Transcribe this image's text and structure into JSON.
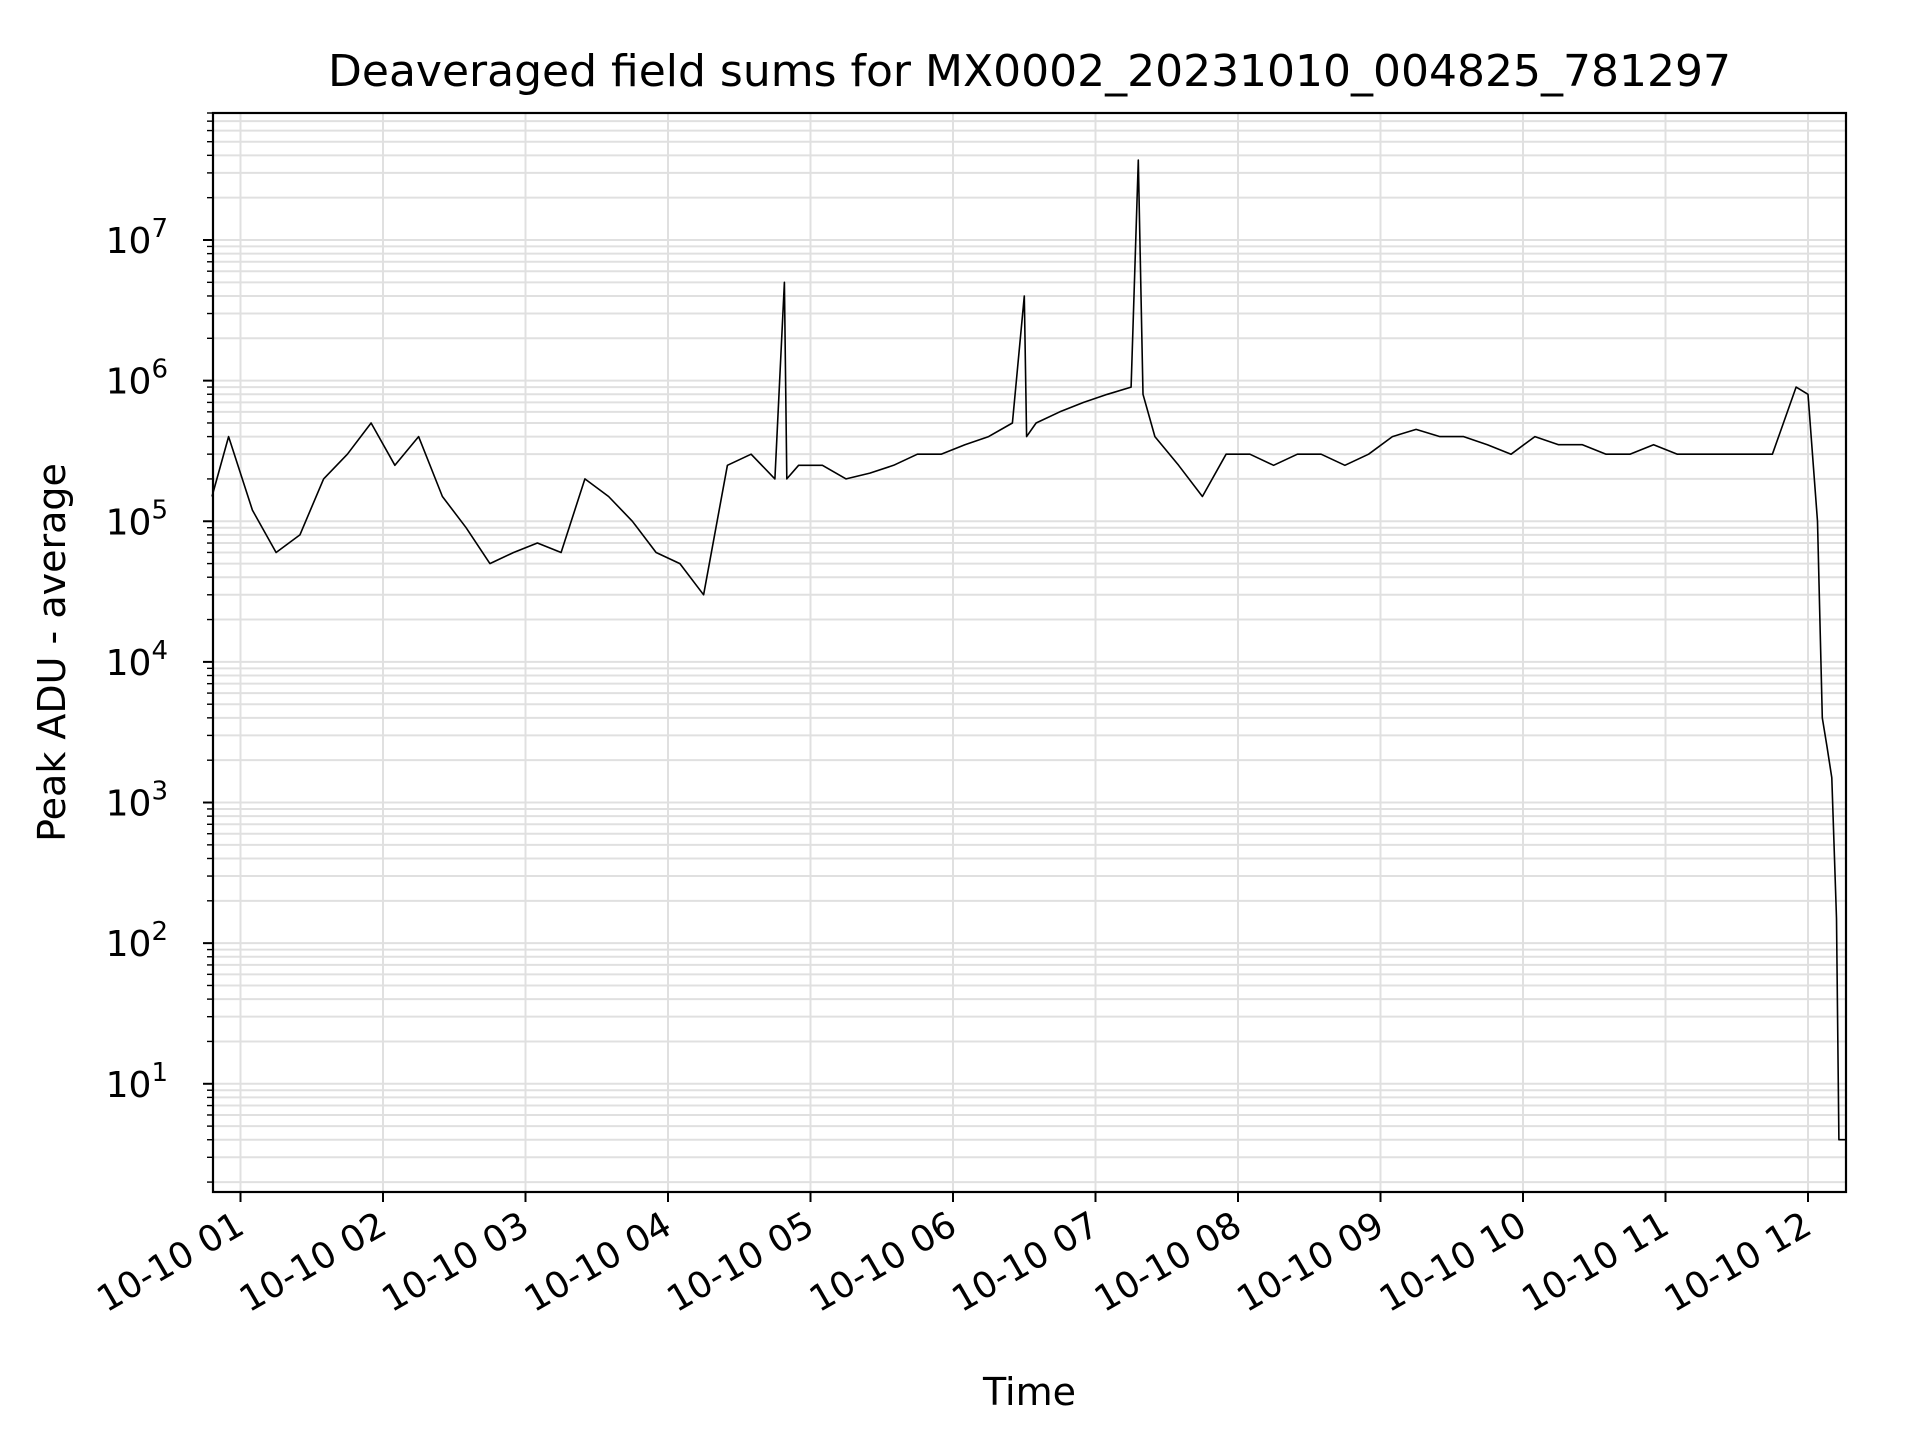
{
  "chart_data": {
    "type": "line",
    "title": "Deaveraged field sums for MX0002_20231010_004825_781297",
    "xlabel": "Time",
    "ylabel": "Peak ADU - average",
    "y_scale": "log",
    "ylim": [
      1.7,
      80000000
    ],
    "xlim": [
      "2023-10-10 00:48:25",
      "2023-10-10 12:16:00"
    ],
    "grid": true,
    "line_color": "#000000",
    "grid_color": "#e0e0e0",
    "x_ticks": [
      "10-10 01",
      "10-10 02",
      "10-10 03",
      "10-10 04",
      "10-10 05",
      "10-10 06",
      "10-10 07",
      "10-10 08",
      "10-10 09",
      "10-10 10",
      "10-10 11",
      "10-10 12"
    ],
    "x_tick_times": [
      "2023-10-10 01:00",
      "2023-10-10 02:00",
      "2023-10-10 03:00",
      "2023-10-10 04:00",
      "2023-10-10 05:00",
      "2023-10-10 06:00",
      "2023-10-10 07:00",
      "2023-10-10 08:00",
      "2023-10-10 09:00",
      "2023-10-10 10:00",
      "2023-10-10 11:00",
      "2023-10-10 12:00"
    ],
    "y_ticks": [
      {
        "base": "10",
        "exp": "1",
        "value": 10
      },
      {
        "base": "10",
        "exp": "2",
        "value": 100
      },
      {
        "base": "10",
        "exp": "3",
        "value": 1000
      },
      {
        "base": "10",
        "exp": "4",
        "value": 10000
      },
      {
        "base": "10",
        "exp": "5",
        "value": 100000
      },
      {
        "base": "10",
        "exp": "6",
        "value": 1000000
      },
      {
        "base": "10",
        "exp": "7",
        "value": 10000000
      }
    ],
    "series": [
      {
        "x": [
          "2023-10-10 00:48",
          "2023-10-10 00:55",
          "2023-10-10 01:05",
          "2023-10-10 01:15",
          "2023-10-10 01:25",
          "2023-10-10 01:35",
          "2023-10-10 01:45",
          "2023-10-10 01:55",
          "2023-10-10 02:05",
          "2023-10-10 02:15",
          "2023-10-10 02:25",
          "2023-10-10 02:35",
          "2023-10-10 02:45",
          "2023-10-10 02:55",
          "2023-10-10 03:05",
          "2023-10-10 03:15",
          "2023-10-10 03:25",
          "2023-10-10 03:35",
          "2023-10-10 03:45",
          "2023-10-10 03:55",
          "2023-10-10 04:05",
          "2023-10-10 04:15",
          "2023-10-10 04:25",
          "2023-10-10 04:35",
          "2023-10-10 04:45",
          "2023-10-10 04:49",
          "2023-10-10 04:50",
          "2023-10-10 04:55",
          "2023-10-10 05:05",
          "2023-10-10 05:15",
          "2023-10-10 05:25",
          "2023-10-10 05:35",
          "2023-10-10 05:45",
          "2023-10-10 05:55",
          "2023-10-10 06:05",
          "2023-10-10 06:15",
          "2023-10-10 06:25",
          "2023-10-10 06:30",
          "2023-10-10 06:31",
          "2023-10-10 06:35",
          "2023-10-10 06:45",
          "2023-10-10 06:55",
          "2023-10-10 07:05",
          "2023-10-10 07:15",
          "2023-10-10 07:18",
          "2023-10-10 07:20",
          "2023-10-10 07:25",
          "2023-10-10 07:35",
          "2023-10-10 07:45",
          "2023-10-10 07:55",
          "2023-10-10 08:05",
          "2023-10-10 08:15",
          "2023-10-10 08:25",
          "2023-10-10 08:35",
          "2023-10-10 08:45",
          "2023-10-10 08:55",
          "2023-10-10 09:05",
          "2023-10-10 09:15",
          "2023-10-10 09:25",
          "2023-10-10 09:35",
          "2023-10-10 09:45",
          "2023-10-10 09:55",
          "2023-10-10 10:05",
          "2023-10-10 10:15",
          "2023-10-10 10:25",
          "2023-10-10 10:35",
          "2023-10-10 10:45",
          "2023-10-10 10:55",
          "2023-10-10 11:05",
          "2023-10-10 11:15",
          "2023-10-10 11:25",
          "2023-10-10 11:35",
          "2023-10-10 11:45",
          "2023-10-10 11:55",
          "2023-10-10 12:00",
          "2023-10-10 12:04",
          "2023-10-10 12:06",
          "2023-10-10 12:08",
          "2023-10-10 12:10",
          "2023-10-10 12:12",
          "2023-10-10 12:13",
          "2023-10-10 12:16"
        ],
        "y": [
          150000,
          400000,
          120000,
          60000,
          80000,
          200000,
          300000,
          500000,
          250000,
          400000,
          150000,
          90000,
          50000,
          60000,
          70000,
          60000,
          200000,
          150000,
          100000,
          60000,
          50000,
          30000,
          250000,
          300000,
          200000,
          5000000,
          200000,
          250000,
          250000,
          200000,
          220000,
          250000,
          300000,
          300000,
          350000,
          400000,
          500000,
          4000000,
          400000,
          500000,
          600000,
          700000,
          800000,
          900000,
          37000000,
          800000,
          400000,
          250000,
          150000,
          300000,
          300000,
          250000,
          300000,
          300000,
          250000,
          300000,
          400000,
          450000,
          400000,
          400000,
          350000,
          300000,
          400000,
          350000,
          350000,
          300000,
          300000,
          350000,
          300000,
          300000,
          300000,
          300000,
          300000,
          900000,
          800000,
          100000,
          4000,
          2500,
          1500,
          150,
          4,
          4
        ]
      }
    ]
  }
}
